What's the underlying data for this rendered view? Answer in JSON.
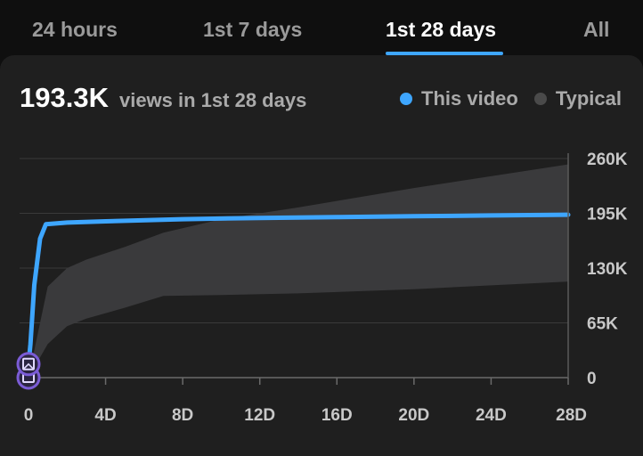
{
  "tabs": [
    {
      "label": "24 hours",
      "active": false
    },
    {
      "label": "1st 7 days",
      "active": false
    },
    {
      "label": "1st 28 days",
      "active": true
    },
    {
      "label": "All",
      "active": false
    }
  ],
  "summary": {
    "value": "193.3K",
    "caption": "views in 1st 28 days"
  },
  "legend": {
    "this_video": {
      "label": "This video",
      "color": "#3ea6ff"
    },
    "typical": {
      "label": "Typical",
      "color": "#4a4a4a"
    }
  },
  "colors": {
    "accent": "#3ea6ff",
    "typical_band": "#3a3a3c",
    "marker": "#7b5cd6"
  },
  "chart_data": {
    "type": "area",
    "title": "",
    "xlabel": "",
    "ylabel": "",
    "x_unit": "days",
    "xlim": [
      0,
      28
    ],
    "ylim": [
      0,
      260000
    ],
    "x_ticks": [
      {
        "value": 0,
        "label": "0"
      },
      {
        "value": 4,
        "label": "4D"
      },
      {
        "value": 8,
        "label": "8D"
      },
      {
        "value": 12,
        "label": "12D"
      },
      {
        "value": 16,
        "label": "16D"
      },
      {
        "value": 20,
        "label": "20D"
      },
      {
        "value": 24,
        "label": "24D"
      },
      {
        "value": 28,
        "label": "28D"
      }
    ],
    "y_ticks": [
      {
        "value": 0,
        "label": "0"
      },
      {
        "value": 65000,
        "label": "65K"
      },
      {
        "value": 130000,
        "label": "130K"
      },
      {
        "value": 195000,
        "label": "195K"
      },
      {
        "value": 260000,
        "label": "260K"
      }
    ],
    "grid": true,
    "y_axis_position": "right",
    "series": [
      {
        "name": "This video",
        "type": "line",
        "x": [
          0,
          0.1,
          0.3,
          0.6,
          0.9,
          2,
          4,
          8,
          12,
          16,
          20,
          24,
          28
        ],
        "y": [
          15000,
          40000,
          110000,
          165000,
          182000,
          184000,
          185500,
          188000,
          189500,
          190500,
          191500,
          192500,
          193300
        ]
      },
      {
        "name": "Typical",
        "type": "band",
        "x": [
          0,
          1,
          2,
          3,
          5,
          7,
          10,
          14,
          20,
          28
        ],
        "lower": [
          0,
          40000,
          61000,
          70000,
          83000,
          97000,
          98000,
          100000,
          105000,
          114000
        ],
        "upper": [
          0,
          108000,
          130000,
          140000,
          155000,
          172000,
          188000,
          202000,
          225000,
          253000
        ]
      }
    ],
    "markers": [
      {
        "x": 0,
        "y": 0,
        "icon": "video-upload-icon"
      },
      {
        "x": 0,
        "y": 15000,
        "icon": "image-icon"
      }
    ]
  }
}
